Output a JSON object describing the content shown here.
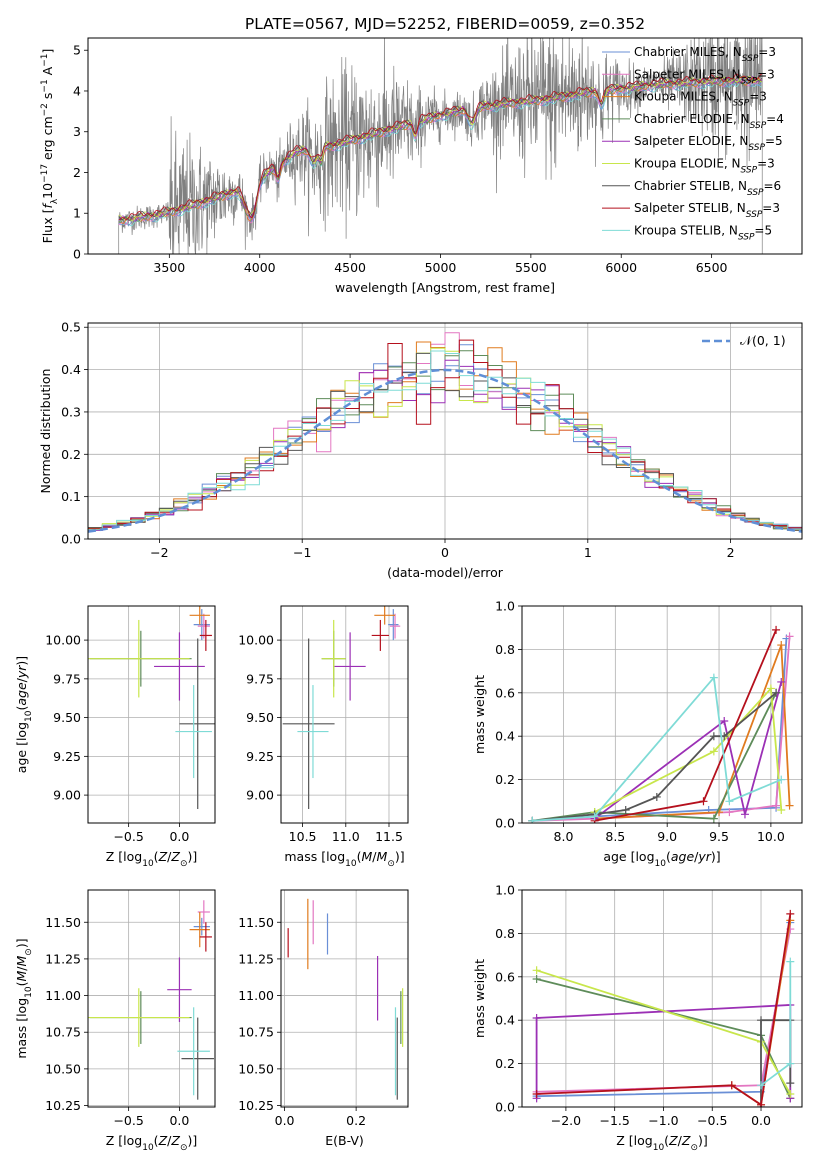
{
  "figure_title": "PLATE=0567, MJD=52252, FIBERID=0059, z=0.352",
  "colors": {
    "Chabrier MILES": "#6a8fd6",
    "Salpeter MILES": "#e377c2",
    "Kroupa MILES": "#e07b1f",
    "Chabrier ELODIE": "#5e8c5a",
    "Salpeter ELODIE": "#9b30b5",
    "Kroupa ELODIE": "#c8e64b",
    "Chabrier STELIB": "#555555",
    "Salpeter STELIB": "#b5101d",
    "Kroupa STELIB": "#7fdbd6",
    "data": "#808080",
    "normal": "#5f8fd6"
  },
  "chart_data": [
    {
      "id": "spectrum",
      "type": "line",
      "title": "PLATE=0567, MJD=52252, FIBERID=0059, z=0.352",
      "xlabel": "wavelength [Angstrom, rest frame]",
      "ylabel": "Flux [f_λ 10^-17 erg cm^-2 s^-1 A^-1]",
      "xlim": [
        3050,
        7000
      ],
      "ylim": [
        0,
        5.3
      ],
      "xticks": [
        "3500",
        "4000",
        "4500",
        "5000",
        "5500",
        "6000",
        "6500"
      ],
      "yticks": [
        "0",
        "1",
        "2",
        "3",
        "4",
        "5"
      ],
      "grid": false,
      "legend_position": "top-right",
      "legend": [
        {
          "label": "Chabrier MILES, N",
          "sub": "SSP",
          "n": "=3",
          "series": "Chabrier MILES"
        },
        {
          "label": "Salpeter MILES, N",
          "sub": "SSP",
          "n": "=3",
          "series": "Salpeter MILES"
        },
        {
          "label": "Kroupa MILES, N",
          "sub": "SSP",
          "n": "=3",
          "series": "Kroupa MILES"
        },
        {
          "label": "Chabrier ELODIE, N",
          "sub": "SSP",
          "n": "=4",
          "series": "Chabrier ELODIE"
        },
        {
          "label": "Salpeter ELODIE, N",
          "sub": "SSP",
          "n": "=5",
          "series": "Salpeter ELODIE"
        },
        {
          "label": "Kroupa ELODIE, N",
          "sub": "SSP",
          "n": "=3",
          "series": "Kroupa ELODIE"
        },
        {
          "label": "Chabrier STELIB, N",
          "sub": "SSP",
          "n": "=6",
          "series": "Chabrier STELIB"
        },
        {
          "label": "Salpeter STELIB, N",
          "sub": "SSP",
          "n": "=3",
          "series": "Salpeter STELIB"
        },
        {
          "label": "Kroupa STELIB, N",
          "sub": "SSP",
          "n": "=5",
          "series": "Kroupa STELIB"
        }
      ],
      "continuum": {
        "wavelength": [
          3220,
          3400,
          3500,
          3700,
          3900,
          4000,
          4200,
          4400,
          4600,
          4800,
          5000,
          5200,
          5400,
          5600,
          5800,
          6000,
          6200,
          6400,
          6600,
          6780
        ],
        "flux": [
          1.15,
          1.2,
          1.25,
          1.45,
          1.65,
          1.85,
          2.5,
          2.65,
          2.9,
          3.15,
          3.4,
          3.6,
          3.7,
          3.8,
          3.95,
          4.05,
          4.15,
          4.2,
          4.25,
          4.25
        ]
      },
      "data_range": [
        3220,
        6780
      ]
    },
    {
      "id": "residuals",
      "type": "area",
      "xlabel": "(data-model)/error",
      "ylabel": "Normed distribution",
      "xlim": [
        -2.5,
        2.5
      ],
      "ylim": [
        0,
        0.51
      ],
      "xticks": [
        "−2",
        "−1",
        "0",
        "1",
        "2"
      ],
      "yticks": [
        "0.0",
        "0.1",
        "0.2",
        "0.3",
        "0.4",
        "0.5"
      ],
      "grid": true,
      "legend_position": "top-right",
      "legend": [
        "𝒩(0, 1)"
      ],
      "bin_width": 0.1,
      "histogram": "normal-like step histograms, one per model"
    },
    {
      "id": "age_vs_Z",
      "type": "scatter",
      "xlabel": "Z [log10(Z/Z⊙)]",
      "ylabel": "age  [log10(age/yr)]",
      "xlim": [
        -0.9,
        0.35
      ],
      "ylim": [
        8.82,
        10.22
      ],
      "xticks": [
        "−0.5",
        "0.0"
      ],
      "yticks": [
        "9.00",
        "9.25",
        "9.50",
        "9.75",
        "10.00"
      ],
      "grid": true,
      "points": [
        {
          "series": "Chabrier MILES",
          "x": 0.22,
          "xerr": 0.08,
          "y": 10.1,
          "yerr": 0.1
        },
        {
          "series": "Salpeter MILES",
          "x": 0.24,
          "xerr": 0.06,
          "y": 10.09,
          "yerr": 0.08
        },
        {
          "series": "Kroupa MILES",
          "x": 0.2,
          "xerr": 0.1,
          "y": 10.16,
          "yerr": 0.06
        },
        {
          "series": "Chabrier ELODIE",
          "x": -0.38,
          "xerr": 0.5,
          "y": 9.88,
          "yerr": 0.18
        },
        {
          "series": "Salpeter ELODIE",
          "x": 0.0,
          "xerr": 0.25,
          "y": 9.83,
          "yerr": 0.22
        },
        {
          "series": "Kroupa ELODIE",
          "x": -0.4,
          "xerr": 0.5,
          "y": 9.88,
          "yerr": 0.25
        },
        {
          "series": "Chabrier STELIB",
          "x": 0.18,
          "xerr": 0.18,
          "y": 9.46,
          "yerr": 0.55
        },
        {
          "series": "Salpeter STELIB",
          "x": 0.26,
          "xerr": 0.06,
          "y": 10.03,
          "yerr": 0.1
        },
        {
          "series": "Kroupa STELIB",
          "x": 0.14,
          "xerr": 0.18,
          "y": 9.41,
          "yerr": 0.3
        }
      ]
    },
    {
      "id": "age_vs_mass",
      "type": "scatter",
      "xlabel": "mass [log10(M/M⊙)]",
      "ylabel": "",
      "xlim": [
        10.25,
        11.72
      ],
      "ylim": [
        8.82,
        10.22
      ],
      "xticks": [
        "10.5",
        "11.0",
        "11.5"
      ],
      "yticks": [
        "9.00",
        "9.25",
        "9.50",
        "9.75",
        "10.00"
      ],
      "grid": true,
      "points": [
        {
          "series": "Chabrier MILES",
          "x": 11.55,
          "xerr": 0.06,
          "y": 10.1,
          "yerr": 0.1
        },
        {
          "series": "Salpeter MILES",
          "x": 11.57,
          "xerr": 0.06,
          "y": 10.09,
          "yerr": 0.08
        },
        {
          "series": "Kroupa MILES",
          "x": 11.45,
          "xerr": 0.12,
          "y": 10.16,
          "yerr": 0.06
        },
        {
          "series": "Chabrier ELODIE",
          "x": 10.86,
          "xerr": 0.14,
          "y": 9.88,
          "yerr": 0.18
        },
        {
          "series": "Salpeter ELODIE",
          "x": 11.05,
          "xerr": 0.18,
          "y": 9.83,
          "yerr": 0.22
        },
        {
          "series": "Kroupa ELODIE",
          "x": 10.86,
          "xerr": 0.14,
          "y": 9.88,
          "yerr": 0.25
        },
        {
          "series": "Chabrier STELIB",
          "x": 10.57,
          "xerr": 0.3,
          "y": 9.46,
          "yerr": 0.55
        },
        {
          "series": "Salpeter STELIB",
          "x": 11.4,
          "xerr": 0.1,
          "y": 10.03,
          "yerr": 0.1
        },
        {
          "series": "Kroupa STELIB",
          "x": 10.62,
          "xerr": 0.18,
          "y": 9.41,
          "yerr": 0.3
        }
      ]
    },
    {
      "id": "weight_vs_age",
      "type": "line",
      "xlabel": "age  [log10(age/yr)]",
      "ylabel": "mass weight",
      "xlim": [
        7.6,
        10.3
      ],
      "ylim": [
        0,
        1.0
      ],
      "xticks": [
        "8.0",
        "8.5",
        "9.0",
        "9.5",
        "10.0"
      ],
      "yticks": [
        "0.0",
        "0.2",
        "0.4",
        "0.6",
        "0.8",
        "1.0"
      ],
      "grid": true,
      "series": [
        {
          "series": "Chabrier MILES",
          "x": [
            7.7,
            8.3,
            9.4,
            10.05,
            10.15
          ],
          "y": [
            0.01,
            0.03,
            0.06,
            0.07,
            0.85
          ]
        },
        {
          "series": "Salpeter MILES",
          "x": [
            7.7,
            8.3,
            9.6,
            10.05,
            10.18
          ],
          "y": [
            0.01,
            0.02,
            0.05,
            0.08,
            0.86
          ]
        },
        {
          "series": "Kroupa MILES",
          "x": [
            8.3,
            9.5,
            10.1,
            10.18
          ],
          "y": [
            0.02,
            0.05,
            0.82,
            0.08
          ]
        },
        {
          "series": "Chabrier ELODIE",
          "x": [
            7.7,
            8.3,
            9.45,
            10.05
          ],
          "y": [
            0.01,
            0.05,
            0.02,
            0.6
          ]
        },
        {
          "series": "Salpeter ELODIE",
          "x": [
            8.3,
            9.55,
            9.75,
            10.1
          ],
          "y": [
            0.02,
            0.47,
            0.04,
            0.65
          ]
        },
        {
          "series": "Kroupa ELODIE",
          "x": [
            8.3,
            9.45,
            10.0,
            10.1
          ],
          "y": [
            0.05,
            0.33,
            0.62,
            0.06
          ]
        },
        {
          "series": "Chabrier STELIB",
          "x": [
            7.7,
            8.3,
            8.6,
            8.9,
            9.45,
            9.55,
            10.05
          ],
          "y": [
            0.01,
            0.04,
            0.06,
            0.12,
            0.4,
            0.4,
            0.6
          ]
        },
        {
          "series": "Salpeter STELIB",
          "x": [
            8.3,
            9.35,
            10.05
          ],
          "y": [
            0.01,
            0.1,
            0.89
          ]
        },
        {
          "series": "Kroupa STELIB",
          "x": [
            7.7,
            8.3,
            9.45,
            9.6,
            10.1
          ],
          "y": [
            0.01,
            0.03,
            0.67,
            0.1,
            0.2
          ]
        }
      ]
    },
    {
      "id": "mass_vs_Z",
      "type": "scatter",
      "xlabel": "Z [log10(Z/Z⊙)]",
      "ylabel": "mass [log10(M/M⊙)]",
      "xlim": [
        -0.9,
        0.35
      ],
      "ylim": [
        10.24,
        11.72
      ],
      "xticks": [
        "−0.5",
        "0.0"
      ],
      "yticks": [
        "10.25",
        "10.50",
        "10.75",
        "11.00",
        "11.25",
        "11.50"
      ],
      "grid": true,
      "points": [
        {
          "series": "Chabrier MILES",
          "x": 0.22,
          "xerr": 0.08,
          "y": 11.47,
          "yerr": 0.06
        },
        {
          "series": "Salpeter MILES",
          "x": 0.24,
          "xerr": 0.06,
          "y": 11.57,
          "yerr": 0.08
        },
        {
          "series": "Kroupa MILES",
          "x": 0.2,
          "xerr": 0.1,
          "y": 11.45,
          "yerr": 0.12
        },
        {
          "series": "Chabrier ELODIE",
          "x": -0.38,
          "xerr": 0.5,
          "y": 10.85,
          "yerr": 0.18
        },
        {
          "series": "Salpeter ELODIE",
          "x": 0.0,
          "xerr": 0.12,
          "y": 11.04,
          "yerr": 0.22
        },
        {
          "series": "Kroupa ELODIE",
          "x": -0.4,
          "xerr": 0.5,
          "y": 10.85,
          "yerr": 0.2
        },
        {
          "series": "Chabrier STELIB",
          "x": 0.18,
          "xerr": 0.16,
          "y": 10.57,
          "yerr": 0.28
        },
        {
          "series": "Salpeter STELIB",
          "x": 0.26,
          "xerr": 0.06,
          "y": 11.4,
          "yerr": 0.1
        },
        {
          "series": "Kroupa STELIB",
          "x": 0.14,
          "xerr": 0.16,
          "y": 10.62,
          "yerr": 0.3
        }
      ]
    },
    {
      "id": "mass_vs_ebv",
      "type": "scatter",
      "xlabel": "E(B-V)",
      "ylabel": "",
      "xlim": [
        -0.01,
        0.345
      ],
      "ylim": [
        10.24,
        11.72
      ],
      "xticks": [
        "0.0",
        "0.2"
      ],
      "yticks": [
        "10.25",
        "10.50",
        "10.75",
        "11.00",
        "11.25",
        "11.50"
      ],
      "grid": true,
      "points": [
        {
          "series": "Chabrier MILES",
          "x": 0.12,
          "y": 11.42,
          "yerr": 0.14
        },
        {
          "series": "Salpeter MILES",
          "x": 0.08,
          "y": 11.5,
          "yerr": 0.15
        },
        {
          "series": "Kroupa MILES",
          "x": 0.065,
          "y": 11.42,
          "yerr": 0.24
        },
        {
          "series": "Chabrier ELODIE",
          "x": 0.325,
          "y": 10.85,
          "yerr": 0.18
        },
        {
          "series": "Salpeter ELODIE",
          "x": 0.26,
          "y": 11.05,
          "yerr": 0.22
        },
        {
          "series": "Kroupa ELODIE",
          "x": 0.33,
          "y": 10.85,
          "yerr": 0.2
        },
        {
          "series": "Chabrier STELIB",
          "x": 0.315,
          "y": 10.57,
          "yerr": 0.28
        },
        {
          "series": "Salpeter STELIB",
          "x": 0.01,
          "y": 11.36,
          "yerr": 0.1
        },
        {
          "series": "Kroupa STELIB",
          "x": 0.31,
          "y": 10.62,
          "yerr": 0.3
        }
      ]
    },
    {
      "id": "weight_vs_Z",
      "type": "line",
      "xlabel": "Z [log10(Z/Z⊙)]",
      "ylabel": "mass weight",
      "xlim": [
        -2.45,
        0.42
      ],
      "ylim": [
        0,
        1.0
      ],
      "xticks": [
        "−2.0",
        "−1.5",
        "−1.0",
        "−0.5",
        "0.0"
      ],
      "yticks": [
        "0.0",
        "0.2",
        "0.4",
        "0.6",
        "0.8",
        "1.0"
      ],
      "grid": true,
      "series": [
        {
          "series": "Chabrier MILES",
          "x": [
            -2.3,
            0.0,
            0.3
          ],
          "y": [
            0.05,
            0.07,
            0.85
          ]
        },
        {
          "series": "Salpeter MILES",
          "x": [
            -2.3,
            0.0,
            0.3
          ],
          "y": [
            0.07,
            0.1,
            0.82
          ]
        },
        {
          "series": "Kroupa MILES",
          "x": [
            -0.3,
            0.0,
            0.3
          ],
          "y": [
            0.1,
            0.01,
            0.86
          ]
        },
        {
          "series": "Chabrier ELODIE",
          "x": [
            -2.3,
            0.0,
            0.3
          ],
          "y": [
            0.59,
            0.33,
            0.04
          ]
        },
        {
          "series": "Salpeter ELODIE",
          "x": [
            -2.3,
            -2.3,
            0.3,
            0.3
          ],
          "y": [
            0.04,
            0.41,
            0.47,
            0.04
          ]
        },
        {
          "series": "Kroupa ELODIE",
          "x": [
            -2.3,
            0.0,
            0.3
          ],
          "y": [
            0.63,
            0.3,
            0.06
          ]
        },
        {
          "series": "Chabrier STELIB",
          "x": [
            0.0,
            0.0,
            0.3,
            0.3
          ],
          "y": [
            0.0,
            0.4,
            0.4,
            0.11
          ]
        },
        {
          "series": "Salpeter STELIB",
          "x": [
            -2.3,
            -0.3,
            0.0,
            0.3
          ],
          "y": [
            0.06,
            0.1,
            0.01,
            0.89
          ]
        },
        {
          "series": "Kroupa STELIB",
          "x": [
            0.0,
            0.3,
            0.3
          ],
          "y": [
            0.1,
            0.2,
            0.67
          ]
        }
      ]
    }
  ]
}
